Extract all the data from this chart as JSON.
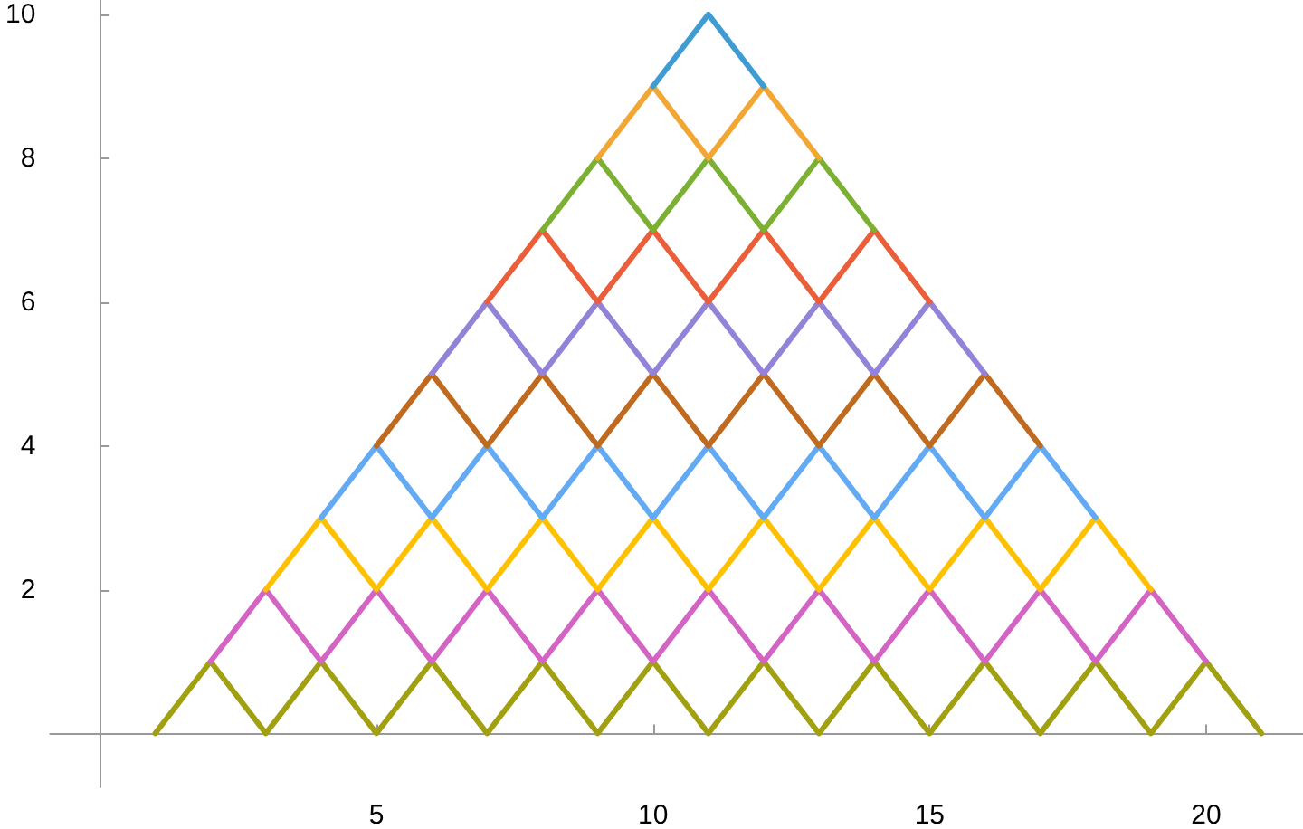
{
  "chart_data": {
    "type": "line",
    "xlim": [
      -0.9,
      21.75
    ],
    "ylim": [
      -0.75,
      10.2
    ],
    "xticks": [
      5,
      10,
      15,
      20
    ],
    "yticks": [
      2,
      4,
      6,
      8,
      10
    ],
    "grid": false,
    "marker": "none",
    "line_style": "solid",
    "series": [
      {
        "color": "#a0a010",
        "x": [
          1,
          2,
          3,
          4,
          5,
          6,
          7,
          8,
          9,
          10,
          11,
          12,
          13,
          14,
          15,
          16,
          17,
          18,
          19,
          20,
          21
        ],
        "values": [
          0,
          1,
          0,
          1,
          0,
          1,
          0,
          1,
          0,
          1,
          0,
          1,
          0,
          1,
          0,
          1,
          0,
          1,
          0,
          1,
          0
        ]
      },
      {
        "color": "#d464c4",
        "x": [
          2,
          3,
          4,
          5,
          6,
          7,
          8,
          9,
          10,
          11,
          12,
          13,
          14,
          15,
          16,
          17,
          18,
          19,
          20
        ],
        "values": [
          1,
          2,
          1,
          2,
          1,
          2,
          1,
          2,
          1,
          2,
          1,
          2,
          1,
          2,
          1,
          2,
          1,
          2,
          1
        ]
      },
      {
        "color": "#ffc000",
        "x": [
          3,
          4,
          5,
          6,
          7,
          8,
          9,
          10,
          11,
          12,
          13,
          14,
          15,
          16,
          17,
          18,
          19
        ],
        "values": [
          2,
          3,
          2,
          3,
          2,
          3,
          2,
          3,
          2,
          3,
          2,
          3,
          2,
          3,
          2,
          3,
          2
        ]
      },
      {
        "color": "#62aaf4",
        "x": [
          4,
          5,
          6,
          7,
          8,
          9,
          10,
          11,
          12,
          13,
          14,
          15,
          16,
          17,
          18
        ],
        "values": [
          3,
          4,
          3,
          4,
          3,
          4,
          3,
          4,
          3,
          4,
          3,
          4,
          3,
          4,
          3
        ]
      },
      {
        "color": "#c06a20",
        "x": [
          5,
          6,
          7,
          8,
          9,
          10,
          11,
          12,
          13,
          14,
          15,
          16,
          17
        ],
        "values": [
          4,
          5,
          4,
          5,
          4,
          5,
          4,
          5,
          4,
          5,
          4,
          5,
          4
        ]
      },
      {
        "color": "#9282d8",
        "x": [
          6,
          7,
          8,
          9,
          10,
          11,
          12,
          13,
          14,
          15,
          16
        ],
        "values": [
          5,
          6,
          5,
          6,
          5,
          6,
          5,
          6,
          5,
          6,
          5
        ]
      },
      {
        "color": "#ea5e3a",
        "x": [
          7,
          8,
          9,
          10,
          11,
          12,
          13,
          14,
          15
        ],
        "values": [
          6,
          7,
          6,
          7,
          6,
          7,
          6,
          7,
          6
        ]
      },
      {
        "color": "#7cb032",
        "x": [
          8,
          9,
          10,
          11,
          12,
          13,
          14
        ],
        "values": [
          7,
          8,
          7,
          8,
          7,
          8,
          7
        ]
      },
      {
        "color": "#f2a634",
        "x": [
          9,
          10,
          11,
          12,
          13
        ],
        "values": [
          8,
          9,
          8,
          9,
          8
        ]
      },
      {
        "color": "#3e9cd2",
        "x": [
          10,
          11,
          12
        ],
        "values": [
          9,
          10,
          9
        ]
      }
    ]
  }
}
